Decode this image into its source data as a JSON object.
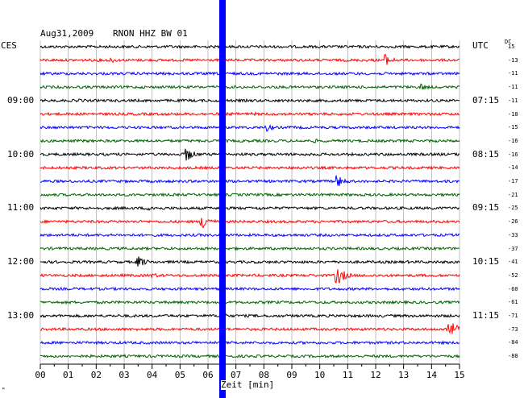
{
  "header": {
    "date": "Aug31,2009",
    "station": "RNON HHZ BW 01",
    "left_zone": "CES",
    "right_zone": "UTC",
    "dc_label": "DC"
  },
  "left_times": [
    "09:00",
    "10:00",
    "11:00",
    "12:00",
    "13:00"
  ],
  "right_times": [
    "07:15",
    "08:15",
    "09:15",
    "10:15",
    "11:15"
  ],
  "dc_values": [
    "15",
    "-13",
    "-11",
    "-11",
    "-11",
    "-18",
    "-15",
    "-16",
    "-16",
    "-14",
    "-17",
    "-21",
    "-25",
    "-26",
    "-33",
    "-37",
    "-41",
    "-52",
    "-60",
    "-61",
    "-71",
    "-73",
    "-84",
    "-88"
  ],
  "x_ticks": [
    "00",
    "01",
    "02",
    "03",
    "04",
    "05",
    "06",
    "07",
    "08",
    "09",
    "10",
    "11",
    "12",
    "13",
    "14",
    "15"
  ],
  "x_axis_label": "Zeit [min]",
  "trace_colors": [
    "#000000",
    "#ff0000",
    "#0000ff",
    "#006400"
  ],
  "marker_color": "#0000ff",
  "events": [
    {
      "trace": 1,
      "minute": 2.5,
      "amp": 4
    },
    {
      "trace": 1,
      "minute": 12.3,
      "amp": 9
    },
    {
      "trace": 3,
      "minute": 13.6,
      "amp": 5
    },
    {
      "trace": 4,
      "minute": 1.4,
      "amp": 3
    },
    {
      "trace": 5,
      "minute": 7.6,
      "amp": 3
    },
    {
      "trace": 6,
      "minute": 8.1,
      "amp": 5
    },
    {
      "trace": 7,
      "minute": 9.8,
      "amp": 3
    },
    {
      "trace": 8,
      "minute": 5.2,
      "amp": 10
    },
    {
      "trace": 9,
      "minute": 9.2,
      "amp": 3
    },
    {
      "trace": 10,
      "minute": 10.6,
      "amp": 9
    },
    {
      "trace": 12,
      "minute": 3.9,
      "amp": 5
    },
    {
      "trace": 12,
      "minute": 7.8,
      "amp": 3
    },
    {
      "trace": 13,
      "minute": 5.8,
      "amp": 11
    },
    {
      "trace": 16,
      "minute": 3.5,
      "amp": 8
    },
    {
      "trace": 17,
      "minute": 10.6,
      "amp": 14
    },
    {
      "trace": 17,
      "minute": 4.0,
      "amp": 4
    },
    {
      "trace": 20,
      "minute": 6.6,
      "amp": 3
    },
    {
      "trace": 21,
      "minute": 14.6,
      "amp": 14
    }
  ]
}
